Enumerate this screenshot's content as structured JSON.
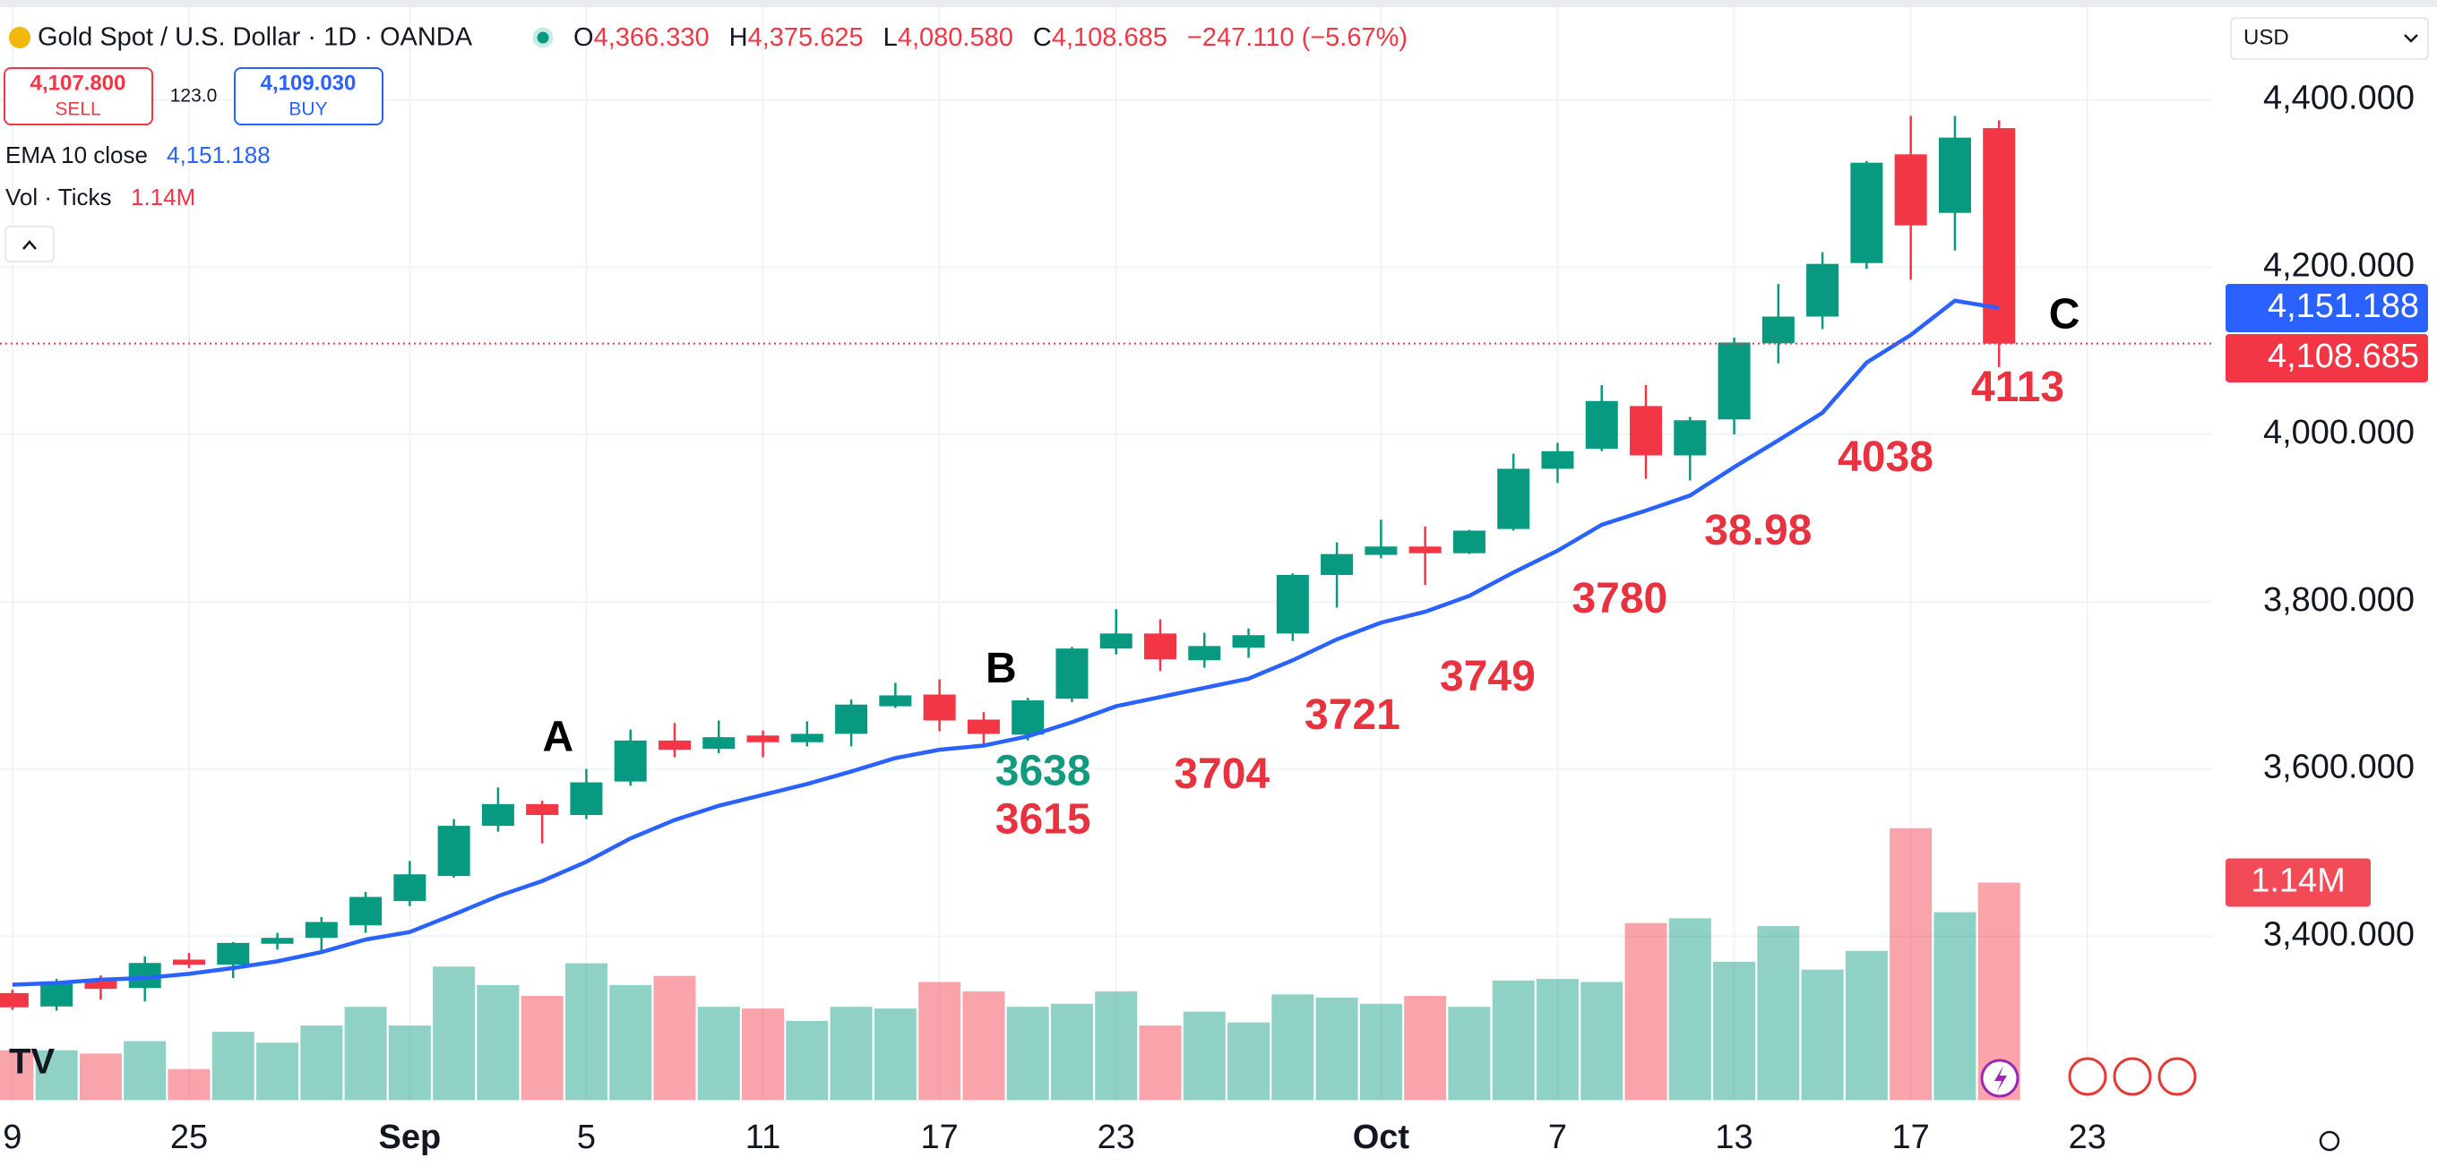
{
  "header": {
    "title": "Gold Spot / U.S. Dollar · 1D · OANDA",
    "o_key": "O",
    "o": "4,366.330",
    "h_key": "H",
    "h": "4,375.625",
    "l_key": "L",
    "l": "4,080.580",
    "c_key": "C",
    "c": "4,108.685",
    "change": "−247.110 (−5.67%)",
    "sell_price": "4,107.800",
    "sell": "SELL",
    "spread": "123.0",
    "buy_price": "4,109.030",
    "buy": "BUY",
    "currency": "USD"
  },
  "chart_data": {
    "type": "candlestick",
    "title": "Gold Spot / U.S. Dollar · 1D · OANDA",
    "categories": [
      "9",
      null,
      null,
      null,
      "25",
      null,
      null,
      null,
      null,
      "Sep",
      null,
      null,
      null,
      "5",
      null,
      null,
      null,
      "11",
      null,
      null,
      null,
      "17",
      null,
      null,
      null,
      "23",
      null,
      null,
      null,
      null,
      null,
      "Oct",
      null,
      null,
      null,
      "7",
      null,
      null,
      null,
      "13",
      null,
      null,
      null,
      "17",
      null,
      null,
      null,
      "23"
    ],
    "open": [
      3332,
      3316,
      3349,
      3338,
      3372,
      3366,
      3391,
      3398,
      3413,
      3442,
      3472,
      3532,
      3558,
      3545,
      3585,
      3634,
      3624,
      3640,
      3632,
      3642,
      3675,
      3689,
      3659,
      3641,
      3684,
      3744,
      3762,
      3730,
      3745,
      3762,
      3832,
      3856,
      3866,
      3858,
      3887,
      3959,
      3983,
      4034,
      3975,
      4018,
      4109,
      4141,
      4205,
      4335,
      4265,
      4366.33,
      null,
      null
    ],
    "high": [
      3336,
      3349,
      3353,
      3376,
      3380,
      3393,
      3404,
      3423,
      3453,
      3490,
      3540,
      3578,
      3562,
      3600,
      3647,
      3655,
      3658,
      3646,
      3657,
      3683,
      3703,
      3707,
      3668,
      3685,
      3746,
      3791,
      3779,
      3763,
      3768,
      3834,
      3871,
      3898,
      3890,
      3886,
      3977,
      3990,
      4059,
      4059,
      4021,
      4116,
      4180,
      4218,
      4327,
      4381,
      4381,
      4375.625,
      null,
      null
    ],
    "low": [
      3312,
      3311,
      3324,
      3322,
      3362,
      3350,
      3384,
      3383,
      3404,
      3436,
      3470,
      3525,
      3511,
      3540,
      3580,
      3614,
      3619,
      3614,
      3627,
      3627,
      3673,
      3645,
      3628,
      3634,
      3680,
      3737,
      3717,
      3721,
      3733,
      3753,
      3793,
      3852,
      3820,
      3857,
      3885,
      3942,
      3980,
      3947,
      3945,
      4000,
      4085,
      4126,
      4198,
      4185,
      4220,
      4080.58,
      null,
      null
    ],
    "close": [
      3315,
      3346,
      3337,
      3368,
      3366,
      3392,
      3398,
      3417,
      3447,
      3474,
      3532,
      3558,
      3545,
      3584,
      3634,
      3623,
      3638,
      3632,
      3642,
      3677,
      3688,
      3658,
      3642,
      3682,
      3744,
      3762,
      3731,
      3747,
      3760,
      3832,
      3857,
      3866,
      3858,
      3885,
      3959,
      3980,
      4040,
      3975,
      4017,
      4110,
      4141,
      4204,
      4325,
      4250,
      4355,
      4108.685,
      null,
      null
    ],
    "close_label": "4,108.685",
    "up_color": "#089981",
    "down_color": "#f23645",
    "ema": {
      "name": "EMA 10 close",
      "color": "#2962ff",
      "last_label": "4,151.188",
      "values": [
        3342,
        3344,
        3348,
        3350,
        3355,
        3362,
        3370,
        3381,
        3396,
        3405,
        3426,
        3448,
        3466,
        3489,
        3517,
        3539,
        3556,
        3569,
        3582,
        3597,
        3613,
        3623,
        3628,
        3639,
        3656,
        3675,
        3686,
        3697,
        3708,
        3730,
        3755,
        3775,
        3788,
        3807,
        3835,
        3861,
        3892,
        3909,
        3927,
        3961,
        3993,
        4026,
        4086,
        4119,
        4160,
        4151.188,
        null,
        null
      ]
    },
    "volume": {
      "name": "Vol · Ticks",
      "last_label": "1.14M",
      "values": [
        261000,
        261000,
        244000,
        309000,
        163000,
        358000,
        301000,
        391000,
        489000,
        391000,
        700000,
        603000,
        546000,
        717000,
        603000,
        651000,
        489000,
        480000,
        415000,
        489000,
        480000,
        619000,
        570000,
        489000,
        505000,
        570000,
        391000,
        464000,
        407000,
        554000,
        537000,
        505000,
        546000,
        489000,
        627000,
        635000,
        619000,
        928000,
        953000,
        725000,
        912000,
        684000,
        782000,
        1425000,
        985000,
        1140000,
        null,
        null
      ]
    },
    "ylim": [
      3204,
      4511
    ],
    "yticks": [
      {
        "value": 3400,
        "label": "3,400.000"
      },
      {
        "value": 3600,
        "label": "3,600.000"
      },
      {
        "value": 3800,
        "label": "3,800.000"
      },
      {
        "value": 4000,
        "label": "4,000.000"
      },
      {
        "value": 4200,
        "label": "4,200.000"
      },
      {
        "value": 4400,
        "label": "4,400.000"
      }
    ],
    "grid": true,
    "annotations": [
      {
        "text": "A",
        "color": "#000000"
      },
      {
        "text": "B",
        "color": "#000000"
      },
      {
        "text": "C",
        "color": "#000000"
      },
      {
        "text": "3638",
        "color": "#129a7e"
      },
      {
        "text": "3615",
        "color": "#e8323f"
      },
      {
        "text": "3704",
        "color": "#e8323f"
      },
      {
        "text": "3721",
        "color": "#e8323f"
      },
      {
        "text": "3749",
        "color": "#e8323f"
      },
      {
        "text": "3780",
        "color": "#e8323f"
      },
      {
        "text": "38.98",
        "color": "#e8323f"
      },
      {
        "text": "4038",
        "color": "#e8323f"
      },
      {
        "text": "4113",
        "color": "#e8323f"
      }
    ]
  }
}
